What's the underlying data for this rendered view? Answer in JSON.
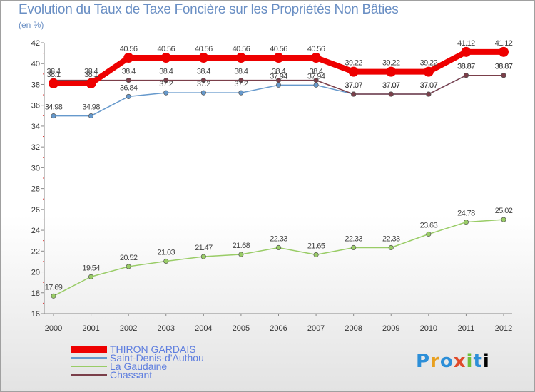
{
  "chart_data": {
    "type": "line",
    "title": "Evolution du Taux de Taxe Foncière sur les Propriétés Non Bâties",
    "ylabel": "(en %)",
    "xlabel": "",
    "ylim": [
      16,
      42
    ],
    "yticks": [
      16,
      18,
      20,
      22,
      24,
      26,
      28,
      30,
      32,
      34,
      36,
      38,
      40,
      42
    ],
    "categories": [
      "2000",
      "2001",
      "2002",
      "2003",
      "2004",
      "2005",
      "2006",
      "2007",
      "2008",
      "2009",
      "2010",
      "2011",
      "2012"
    ],
    "grid": false,
    "series": [
      {
        "name": "THIRON GARDAIS",
        "color": "#ee0000",
        "width": 8,
        "values": [
          38.1,
          38.1,
          40.56,
          40.56,
          40.56,
          40.56,
          40.56,
          40.56,
          39.22,
          39.22,
          39.22,
          41.12,
          41.12
        ],
        "labels": [
          "38.1",
          "38.1",
          "40.56",
          "40.56",
          "40.56",
          "40.56",
          "40.56",
          "40.56",
          "39.22",
          "39.22",
          "39.22",
          "41.12",
          "41.12"
        ]
      },
      {
        "name": "Saint-Denis-d'Authou",
        "color": "#6699cc",
        "width": 1.5,
        "values": [
          34.98,
          34.98,
          36.84,
          37.2,
          37.2,
          37.2,
          37.94,
          37.94,
          37.07,
          37.07,
          37.07,
          38.87,
          38.87
        ],
        "labels": [
          "34.98",
          "34.98",
          "36.84",
          "37.2",
          "37.2",
          "37.2",
          "37.94",
          "37.94",
          "37.07",
          "37.07",
          "37.07",
          "38.87",
          "38.87"
        ]
      },
      {
        "name": "La Gaudaine",
        "color": "#99cc66",
        "width": 1.5,
        "values": [
          17.69,
          19.54,
          20.52,
          21.03,
          21.47,
          21.68,
          22.33,
          21.65,
          22.33,
          22.33,
          23.63,
          24.78,
          25.02
        ],
        "labels": [
          "17.69",
          "19.54",
          "20.52",
          "21.03",
          "21.47",
          "21.68",
          "22.33",
          "21.65",
          "22.33",
          "22.33",
          "23.63",
          "24.78",
          "25.02"
        ]
      },
      {
        "name": "Chassant",
        "color": "#7b3f4a",
        "width": 1.5,
        "values": [
          38.4,
          38.4,
          38.4,
          38.4,
          38.4,
          38.4,
          38.4,
          38.4,
          37.07,
          37.07,
          37.07,
          38.87,
          38.87
        ],
        "labels": [
          "38.4",
          "38.4",
          "38.4",
          "38.4",
          "38.4",
          "38.4",
          "38.4",
          "38.4",
          "37.07",
          "37.07",
          "37.07",
          "38.87",
          "38.87"
        ]
      }
    ]
  },
  "logo": {
    "letters": [
      "P",
      "r",
      "o",
      "x",
      "i",
      "t",
      "i"
    ]
  }
}
